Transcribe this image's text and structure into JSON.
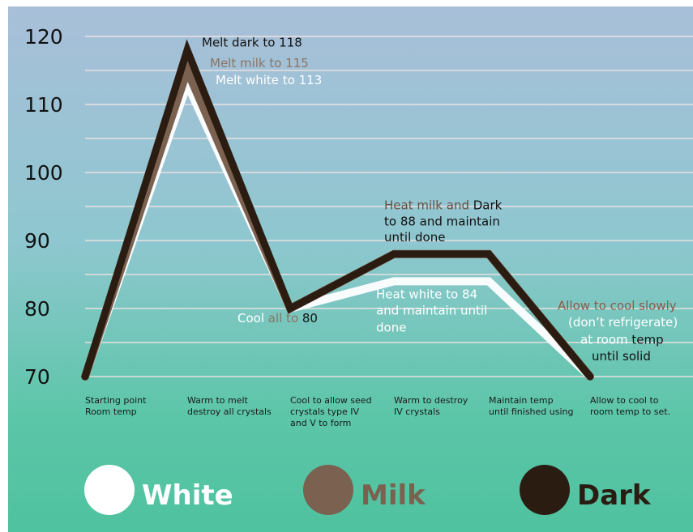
{
  "chart_data": {
    "type": "line",
    "y_ticks": [
      70,
      80,
      90,
      100,
      110,
      120
    ],
    "ylim": [
      68,
      123
    ],
    "grid": true,
    "legend_position": "bottom",
    "x_labels": [
      [
        "Starting point",
        "Room temp"
      ],
      [
        "Warm to melt",
        "destroy all crystals"
      ],
      [
        "Cool to allow seed",
        "crystals type  IV",
        "and V to form"
      ],
      [
        "Warm to destroy",
        "IV crystals"
      ],
      [
        "Maintain temp",
        "until finished using"
      ],
      [
        "Allow to cool to",
        "room temp to set."
      ]
    ],
    "series": [
      {
        "name": "White",
        "color": "#ffffff",
        "points": [
          [
            0,
            70
          ],
          [
            1,
            113
          ],
          [
            2,
            80
          ],
          [
            3,
            84
          ],
          [
            4,
            84
          ],
          [
            5,
            70
          ]
        ]
      },
      {
        "name": "Milk",
        "color": "#7a6150",
        "points": [
          [
            0,
            70
          ],
          [
            1,
            115
          ],
          [
            2,
            80
          ],
          [
            3,
            88
          ],
          [
            4,
            88
          ],
          [
            5,
            70
          ]
        ]
      },
      {
        "name": "Dark",
        "color": "#2b1c12",
        "points": [
          [
            0,
            70
          ],
          [
            1,
            118
          ],
          [
            2,
            80
          ],
          [
            3,
            88
          ],
          [
            4,
            88
          ],
          [
            5,
            70
          ]
        ]
      }
    ],
    "annotations": [
      {
        "parts": [
          {
            "text": "Melt dark to 118",
            "color": "#111111"
          }
        ],
        "x": 1,
        "y": 118.5,
        "offset_x": 18
      },
      {
        "parts": [
          {
            "text": "Melt milk to 115",
            "color": "#8a7464"
          }
        ],
        "x": 1,
        "y": 115.5,
        "offset_x": 28
      },
      {
        "parts": [
          {
            "text": "Melt white to 113",
            "color": "#ffffff"
          }
        ],
        "x": 1,
        "y": 113.0,
        "offset_x": 35
      },
      {
        "parts": [
          {
            "text": "Heat milk and ",
            "color": "#6b4f40"
          },
          {
            "text": "Dark",
            "color": "#111111"
          }
        ],
        "x": 3,
        "y": 94.6,
        "offset_x": -12
      },
      {
        "parts": [
          {
            "text": "to 88 and maintain",
            "color": "#111111"
          }
        ],
        "x": 3,
        "y": 92.2,
        "offset_x": -12
      },
      {
        "parts": [
          {
            "text": "until done",
            "color": "#111111"
          }
        ],
        "x": 3,
        "y": 89.9,
        "offset_x": -12
      },
      {
        "parts": [
          {
            "text": "Heat white to 84",
            "color": "#ffffff"
          }
        ],
        "x": 3,
        "y": 81.5,
        "offset_x": -22
      },
      {
        "parts": [
          {
            "text": "and maintain until",
            "color": "#ffffff"
          }
        ],
        "x": 3,
        "y": 79.1,
        "offset_x": -22
      },
      {
        "parts": [
          {
            "text": "done",
            "color": "#ffffff"
          }
        ],
        "x": 3,
        "y": 76.6,
        "offset_x": -22
      },
      {
        "parts": [
          {
            "text": "Cool ",
            "color": "#ffffff"
          },
          {
            "text": "all to ",
            "color": "#8a7464"
          },
          {
            "text": "80",
            "color": "#111111"
          }
        ],
        "x": 2,
        "y": 78.0,
        "offset_x": -65
      },
      {
        "parts": [
          {
            "text": "Allow to cool slowly",
            "color": "#8c5a4a"
          }
        ],
        "x": 5,
        "y": 79.8,
        "offset_x": -40
      },
      {
        "parts": [
          {
            "text": "(don’t refrigerate)",
            "color": "#ffffff"
          }
        ],
        "x": 5,
        "y": 77.4,
        "offset_x": -27
      },
      {
        "parts": [
          {
            "text": "at room ",
            "color": "#ffffff"
          },
          {
            "text": "temp",
            "color": "#111111"
          }
        ],
        "x": 5,
        "y": 74.8,
        "offset_x": -12
      },
      {
        "parts": [
          {
            "text": "until solid",
            "color": "#111111"
          }
        ],
        "x": 5,
        "y": 72.4,
        "offset_x": 2
      }
    ]
  }
}
